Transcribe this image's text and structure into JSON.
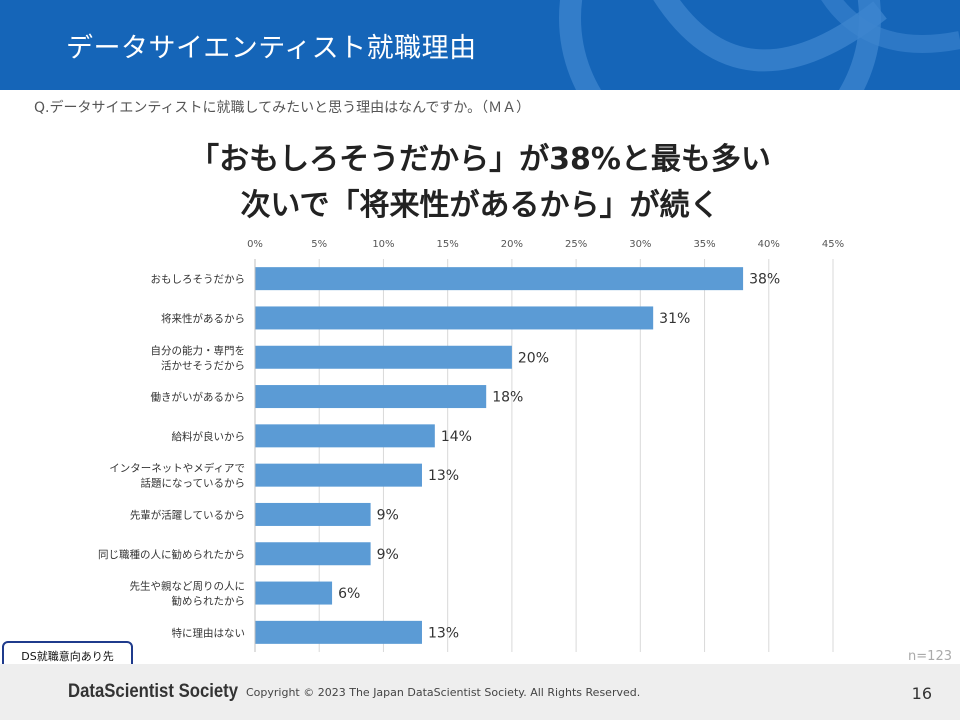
{
  "header": {
    "title": "データサイエンティスト就職理由"
  },
  "question": "Q.データサイエンティストに就職してみたいと思う理由はなんですか。（ＭＡ）",
  "headline": {
    "line1": "「おもしろそうだから」が38%と最も多い",
    "line2": "次いで「将来性があるから」が続く"
  },
  "chart_data": {
    "type": "bar",
    "orientation": "horizontal",
    "categories": [
      [
        "おもしろそうだから"
      ],
      [
        "将来性があるから"
      ],
      [
        "自分の能力・専門を",
        "活かせそうだから"
      ],
      [
        "働きがいがあるから"
      ],
      [
        "給料が良いから"
      ],
      [
        "インターネットやメディアで",
        "話題になっているから"
      ],
      [
        "先輩が活躍しているから"
      ],
      [
        "同じ職種の人に勧められたから"
      ],
      [
        "先生や親など周りの人に",
        "勧められたから"
      ],
      [
        "特に理由はない"
      ]
    ],
    "values": [
      38,
      31,
      20,
      18,
      14,
      13,
      9,
      9,
      6,
      13
    ],
    "data_labels": [
      "38%",
      "31%",
      "20%",
      "18%",
      "14%",
      "13%",
      "9%",
      "9%",
      "6%",
      "13%"
    ],
    "xlim": [
      0,
      45
    ],
    "ticks": [
      0,
      5,
      10,
      15,
      20,
      25,
      30,
      35,
      40,
      45
    ],
    "tick_labels": [
      "0%",
      "5%",
      "10%",
      "15%",
      "20%",
      "25%",
      "30%",
      "35%",
      "40%",
      "45%"
    ],
    "grid": true,
    "bar_color": "#5b9bd5"
  },
  "sample_size": "n=123",
  "badge": "DS就職意向あり先",
  "footer": {
    "logo": "DataScientist Society",
    "copyright": "Copyright © 2023  The Japan DataScientist Society. All Rights Reserved.",
    "page": "16"
  },
  "colors": {
    "header_bg": "#1565b8",
    "bar": "#5b9bd5",
    "footer_bg": "#eeeeee"
  }
}
